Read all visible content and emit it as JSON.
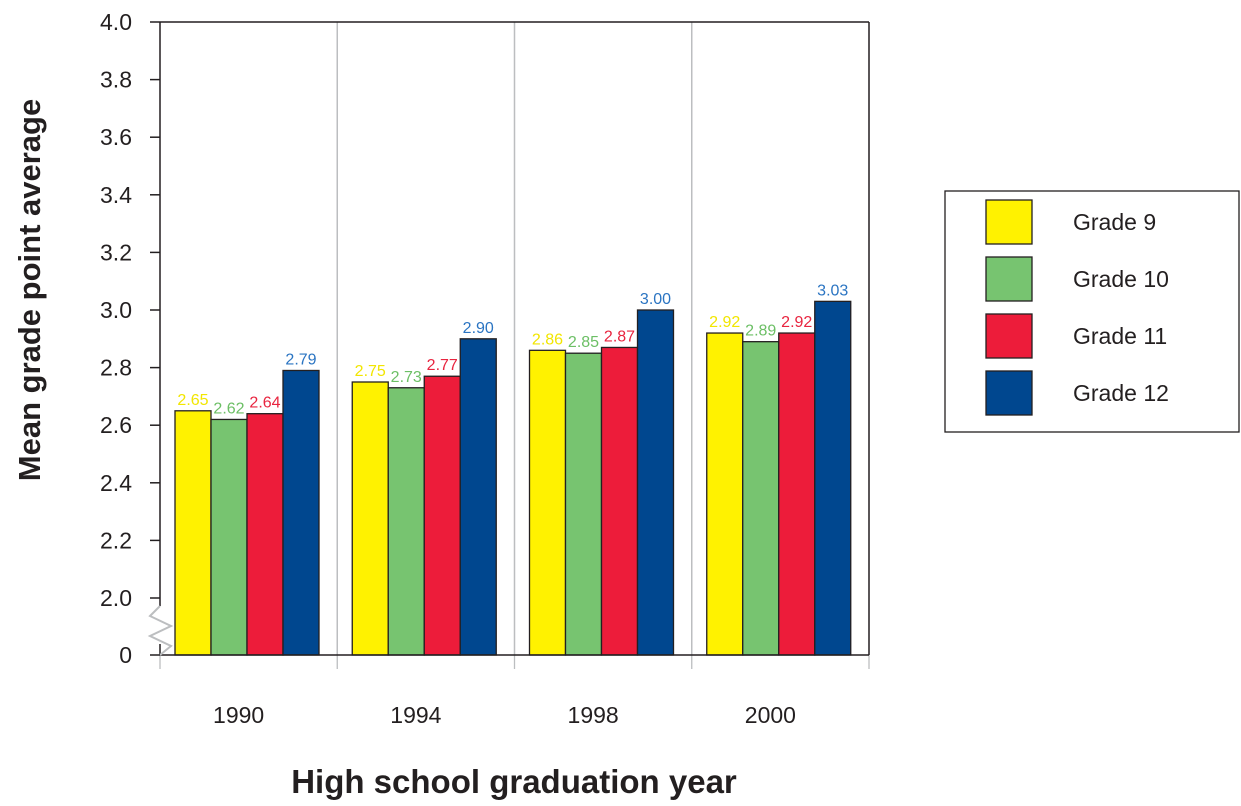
{
  "chart_data": {
    "type": "bar",
    "title": "",
    "xlabel": "High school graduation year",
    "ylabel": "Mean grade point average",
    "categories": [
      "1990",
      "1994",
      "1998",
      "2000"
    ],
    "ylim": [
      2.0,
      4.0
    ],
    "axis_break": true,
    "yticks": [
      "0",
      "2.0",
      "2.2",
      "2.4",
      "2.6",
      "2.8",
      "3.0",
      "3.2",
      "3.4",
      "3.6",
      "3.8",
      "4.0"
    ],
    "grid": false,
    "category_separators": true,
    "legend_position": "right",
    "series": [
      {
        "name": "Grade 9",
        "color": "#fff200",
        "values": [
          2.65,
          2.75,
          2.86,
          2.92
        ]
      },
      {
        "name": "Grade 10",
        "color": "#77c470",
        "values": [
          2.62,
          2.73,
          2.85,
          2.89
        ]
      },
      {
        "name": "Grade 11",
        "color": "#ed1c3a",
        "values": [
          2.64,
          2.77,
          2.87,
          2.92
        ]
      },
      {
        "name": "Grade 12",
        "color": "#00478f",
        "values": [
          2.79,
          2.9,
          3.0,
          3.03
        ]
      }
    ],
    "label_colors": [
      "#f2e600",
      "#6cbf65",
      "#e8243f",
      "#2a74c2"
    ],
    "frame_color": "#231f20",
    "separator_color": "#bcbec0"
  }
}
